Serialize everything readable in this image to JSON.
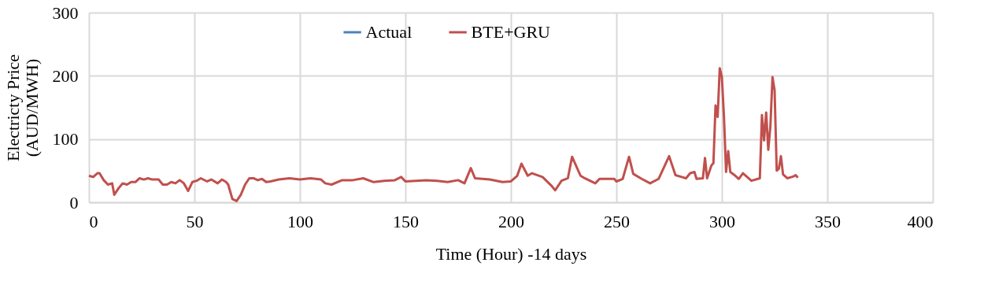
{
  "chart_data": {
    "type": "line",
    "xlabel": "Time (Hour) -14 days",
    "ylabel": "Electricty Price\n(AUD/MWH)",
    "x": [
      0,
      2,
      4,
      5,
      7,
      9,
      11,
      12,
      14,
      16,
      18,
      20,
      22,
      24,
      26,
      28,
      30,
      33,
      35,
      37,
      39,
      41,
      43,
      45,
      47,
      49,
      51,
      53,
      56,
      58,
      61,
      63,
      65,
      66,
      68,
      70,
      72,
      74,
      76,
      78,
      80,
      82,
      84,
      86,
      90,
      95,
      100,
      105,
      110,
      112,
      115,
      120,
      125,
      130,
      135,
      140,
      145,
      148,
      150,
      155,
      160,
      165,
      170,
      175,
      178,
      181,
      183,
      190,
      196,
      200,
      203,
      205,
      208,
      210,
      215,
      219,
      221,
      224,
      227,
      229,
      233,
      235,
      240,
      242,
      249,
      250,
      253,
      256,
      258,
      262,
      266,
      270,
      275,
      278,
      281,
      283,
      285,
      287,
      288,
      291,
      292,
      293,
      295,
      296,
      297,
      298,
      299,
      300,
      301,
      302,
      303,
      304,
      306,
      308,
      310,
      314,
      318,
      319,
      320,
      321,
      322,
      323,
      324,
      325,
      326,
      327,
      328,
      329,
      331,
      334,
      335,
      336
    ],
    "series": [
      {
        "name": "Actual",
        "color": "#4f81bd",
        "values": [
          null,
          null,
          null,
          null,
          null,
          null,
          null,
          null,
          null,
          null,
          null,
          null,
          null,
          null,
          null,
          null,
          null,
          null,
          null,
          null,
          null,
          null,
          null,
          null,
          null,
          null,
          null,
          null,
          null,
          null,
          null,
          null,
          null,
          null,
          null,
          null,
          null,
          null,
          null,
          null,
          null,
          null,
          null,
          null,
          null,
          null,
          null,
          null,
          null,
          null,
          null,
          null,
          null,
          null,
          null,
          null,
          null,
          null,
          null,
          null,
          null,
          null,
          null,
          null,
          null,
          null,
          null,
          null,
          null,
          null,
          null,
          null,
          null,
          null,
          null,
          null,
          null,
          null,
          null,
          null,
          null,
          null,
          null,
          null,
          null,
          null,
          null,
          null,
          null,
          null,
          null,
          null,
          null,
          null,
          null,
          null,
          null,
          null,
          null,
          null,
          null,
          null,
          null,
          null,
          null,
          null,
          null,
          null,
          null,
          null,
          null,
          null,
          null,
          null,
          null,
          null,
          null,
          null,
          null,
          null,
          null,
          null,
          null,
          null,
          null,
          null,
          null,
          null,
          null,
          null,
          null,
          null
        ]
      },
      {
        "name": "BTE+GRU",
        "color": "#c0504d",
        "values": [
          42,
          40,
          46,
          46,
          35,
          28,
          30,
          12,
          22,
          30,
          28,
          32,
          32,
          38,
          36,
          38,
          36,
          36,
          28,
          28,
          32,
          30,
          35,
          30,
          18,
          32,
          34,
          38,
          33,
          36,
          30,
          36,
          32,
          28,
          5,
          2,
          12,
          28,
          38,
          38,
          35,
          37,
          32,
          33,
          36,
          38,
          36,
          38,
          36,
          30,
          28,
          35,
          35,
          38,
          32,
          34,
          35,
          40,
          33,
          34,
          35,
          34,
          32,
          35,
          30,
          54,
          38,
          36,
          32,
          33,
          42,
          61,
          42,
          46,
          40,
          27,
          19,
          34,
          38,
          72,
          42,
          38,
          30,
          37,
          37,
          33,
          37,
          72,
          45,
          37,
          30,
          37,
          73,
          43,
          40,
          38,
          46,
          48,
          37,
          38,
          70,
          38,
          58,
          62,
          153,
          135,
          212,
          198,
          135,
          48,
          81,
          48,
          43,
          37,
          46,
          34,
          38,
          138,
          98,
          142,
          83,
          120,
          198,
          177,
          50,
          53,
          73,
          44,
          38,
          41,
          43,
          39
        ]
      }
    ],
    "xlim": [
      0,
      400
    ],
    "xticks": [
      0,
      50,
      100,
      150,
      200,
      250,
      300,
      350,
      400
    ],
    "ylim": [
      0,
      300
    ],
    "yticks": [
      0,
      100,
      200,
      300
    ],
    "grid": true,
    "legend": "top",
    "line_style": "solid",
    "marker": "none"
  }
}
